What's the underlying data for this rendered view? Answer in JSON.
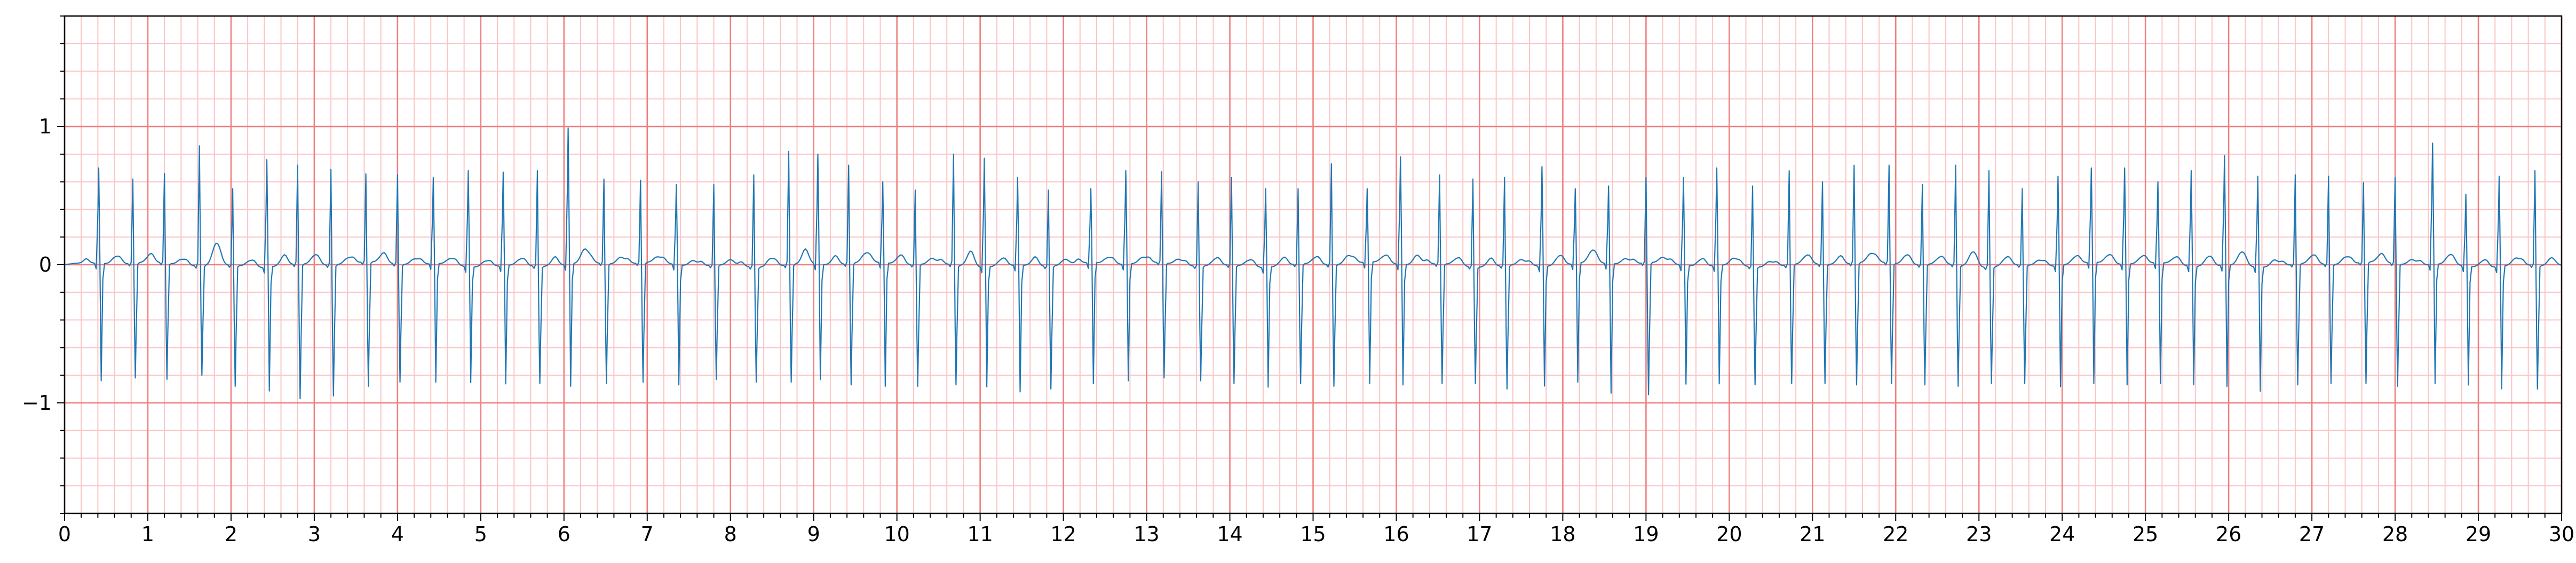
{
  "chart_data": {
    "type": "line",
    "title": "",
    "xlabel": "",
    "ylabel": "",
    "xlim": [
      0,
      30
    ],
    "ylim": [
      -1.8,
      1.8
    ],
    "grid": true,
    "legend": "none",
    "x_ticks": [
      0,
      1,
      2,
      3,
      4,
      5,
      6,
      7,
      8,
      9,
      10,
      11,
      12,
      13,
      14,
      15,
      16,
      17,
      18,
      19,
      20,
      21,
      22,
      23,
      24,
      25,
      26,
      27,
      28,
      29,
      30
    ],
    "x_tick_labels": [
      "0",
      "1",
      "2",
      "3",
      "4",
      "5",
      "6",
      "7",
      "8",
      "9",
      "10",
      "11",
      "12",
      "13",
      "14",
      "15",
      "16",
      "17",
      "18",
      "19",
      "20",
      "21",
      "22",
      "23",
      "24",
      "25",
      "26",
      "27",
      "28",
      "29",
      "30"
    ],
    "y_ticks": [
      -1,
      0,
      1
    ],
    "y_tick_labels": [
      "−1",
      "0",
      "1"
    ],
    "series": [
      {
        "sample_interval_s": 0.02,
        "beat_times_s": [
          0.41,
          0.82,
          1.2,
          1.62,
          2.02,
          2.43,
          2.8,
          3.2,
          3.62,
          4.0,
          4.43,
          4.85,
          5.27,
          5.68,
          6.05,
          6.48,
          6.92,
          7.35,
          7.8,
          8.28,
          8.7,
          9.05,
          9.42,
          9.83,
          10.22,
          10.68,
          11.05,
          11.45,
          11.82,
          12.33,
          12.75,
          13.18,
          13.62,
          14.02,
          14.43,
          14.82,
          15.22,
          15.65,
          16.05,
          16.52,
          16.92,
          17.3,
          17.75,
          18.15,
          18.55,
          19.0,
          19.45,
          19.85,
          20.28,
          20.72,
          21.12,
          21.5,
          21.92,
          22.32,
          22.72,
          23.12,
          23.52,
          23.95,
          24.35,
          24.75,
          25.15,
          25.55,
          25.95,
          26.35,
          26.8,
          27.2,
          27.62,
          28.0,
          28.45,
          28.85,
          29.25,
          29.68
        ],
        "r_peak_amplitude": [
          0.7,
          0.62,
          0.66,
          0.86,
          0.55,
          0.76,
          0.72,
          0.69,
          0.65,
          0.65,
          0.63,
          0.68,
          0.67,
          0.68,
          0.99,
          0.62,
          0.61,
          0.58,
          0.58,
          0.65,
          0.82,
          0.8,
          0.72,
          0.6,
          0.54,
          0.8,
          0.77,
          0.63,
          0.54,
          0.55,
          0.68,
          0.67,
          0.6,
          0.63,
          0.55,
          0.55,
          0.73,
          0.55,
          0.78,
          0.65,
          0.62,
          0.63,
          0.71,
          0.55,
          0.57,
          0.63,
          0.63,
          0.7,
          0.57,
          0.68,
          0.6,
          0.72,
          0.72,
          0.58,
          0.72,
          0.68,
          0.55,
          0.64,
          0.7,
          0.7,
          0.6,
          0.68,
          0.79,
          0.64,
          0.65,
          0.64,
          0.59,
          0.63,
          0.88,
          0.51,
          0.64,
          0.68
        ],
        "s_trough_amplitude": [
          -0.84,
          -0.82,
          -0.83,
          -0.8,
          -0.88,
          -0.9,
          -0.97,
          -0.95,
          -0.88,
          -0.85,
          -0.85,
          -0.84,
          -0.86,
          -0.86,
          -0.88,
          -0.86,
          -0.85,
          -0.87,
          -0.83,
          -0.85,
          -0.85,
          -0.83,
          -0.87,
          -0.88,
          -0.88,
          -0.87,
          -0.87,
          -0.92,
          -0.9,
          -0.86,
          -0.84,
          -0.82,
          -0.84,
          -0.86,
          -0.87,
          -0.86,
          -0.88,
          -0.86,
          -0.87,
          -0.86,
          -0.86,
          -0.9,
          -0.87,
          -0.85,
          -0.93,
          -0.94,
          -0.86,
          -0.86,
          -0.87,
          -0.86,
          -0.86,
          -0.87,
          -0.86,
          -0.87,
          -0.88,
          -0.86,
          -0.86,
          -0.88,
          -0.86,
          -0.87,
          -0.86,
          -0.86,
          -0.88,
          -0.9,
          -0.87,
          -0.86,
          -0.86,
          -0.88,
          -0.86,
          -0.86,
          -0.89,
          -0.9
        ],
        "t_wave_amplitude": [
          0.05,
          0.04,
          0.04,
          0.15,
          0.04,
          0.05,
          0.06,
          0.04,
          0.05,
          0.04,
          0.04,
          0.04,
          0.04,
          0.04,
          0.1,
          0.05,
          0.04,
          0.04,
          0.04,
          0.06,
          0.08,
          0.04,
          0.06,
          0.05,
          0.04,
          0.09,
          0.04,
          0.04,
          0.04,
          0.04,
          0.04,
          0.04,
          0.04,
          0.04,
          0.04,
          0.04,
          0.06,
          0.04,
          0.07,
          0.04,
          0.04,
          0.04,
          0.06,
          0.08,
          0.04,
          0.04,
          0.04,
          0.05,
          0.04,
          0.05,
          0.04,
          0.06,
          0.06,
          0.04,
          0.1,
          0.05,
          0.04,
          0.04,
          0.05,
          0.04,
          0.04,
          0.06,
          0.09,
          0.05,
          0.05,
          0.05,
          0.04,
          0.04,
          0.06,
          0.04,
          0.05,
          0.06
        ],
        "color": "#1f77b4"
      }
    ]
  },
  "colors": {
    "grid_major": "#f08080",
    "grid_minor": "#fbc4c4",
    "axis": "#000000",
    "background": "#ffffff"
  }
}
